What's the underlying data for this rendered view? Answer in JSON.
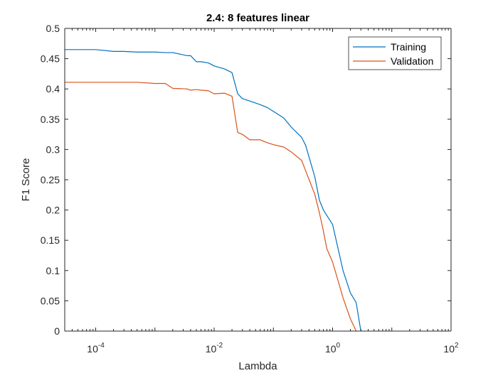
{
  "chart_data": {
    "type": "line",
    "title": "2.4: 8 features linear",
    "xlabel": "Lambda",
    "ylabel": "F1 Score",
    "xscale": "log",
    "xlim": [
      3e-05,
      100
    ],
    "ylim": [
      0,
      0.5
    ],
    "xticks": [
      {
        "value": 0.0001,
        "base": "10",
        "exp": "-4"
      },
      {
        "value": 0.01,
        "base": "10",
        "exp": "-2"
      },
      {
        "value": 1,
        "base": "10",
        "exp": "0"
      },
      {
        "value": 100,
        "base": "10",
        "exp": "2"
      }
    ],
    "yticks": [
      "0",
      "0.05",
      "0.1",
      "0.15",
      "0.2",
      "0.25",
      "0.3",
      "0.35",
      "0.4",
      "0.45",
      "0.5"
    ],
    "legend_location": "top-right",
    "grid": false,
    "series": [
      {
        "name": "Training",
        "color": "#0072BD",
        "x": [
          3e-05,
          0.0001,
          0.0002,
          0.0003,
          0.0005,
          0.001,
          0.0015,
          0.002,
          0.0035,
          0.004,
          0.005,
          0.006,
          0.008,
          0.01,
          0.015,
          0.02,
          0.025,
          0.03,
          0.04,
          0.06,
          0.08,
          0.1,
          0.15,
          0.2,
          0.3,
          0.35,
          0.5,
          0.6,
          0.7,
          0.8,
          1.0,
          1.5,
          2.0,
          2.5,
          3.0
        ],
        "y": [
          0.465,
          0.465,
          0.462,
          0.462,
          0.461,
          0.461,
          0.46,
          0.46,
          0.455,
          0.455,
          0.445,
          0.445,
          0.443,
          0.438,
          0.433,
          0.427,
          0.392,
          0.384,
          0.38,
          0.374,
          0.369,
          0.363,
          0.352,
          0.337,
          0.32,
          0.307,
          0.255,
          0.216,
          0.2,
          0.191,
          0.176,
          0.1,
          0.063,
          0.047,
          0.0
        ]
      },
      {
        "name": "Validation",
        "color": "#D95319",
        "x": [
          3e-05,
          0.0001,
          0.0002,
          0.0003,
          0.0005,
          0.001,
          0.0015,
          0.002,
          0.0035,
          0.004,
          0.005,
          0.006,
          0.008,
          0.01,
          0.015,
          0.02,
          0.025,
          0.03,
          0.04,
          0.06,
          0.08,
          0.1,
          0.15,
          0.2,
          0.3,
          0.35,
          0.5,
          0.6,
          0.7,
          0.8,
          1.0,
          1.5,
          2.0,
          2.5
        ],
        "y": [
          0.411,
          0.411,
          0.411,
          0.411,
          0.411,
          0.409,
          0.409,
          0.401,
          0.4,
          0.398,
          0.399,
          0.398,
          0.397,
          0.392,
          0.393,
          0.388,
          0.328,
          0.325,
          0.316,
          0.316,
          0.311,
          0.308,
          0.304,
          0.296,
          0.282,
          0.265,
          0.226,
          0.195,
          0.165,
          0.136,
          0.114,
          0.055,
          0.02,
          0.0
        ]
      }
    ]
  }
}
